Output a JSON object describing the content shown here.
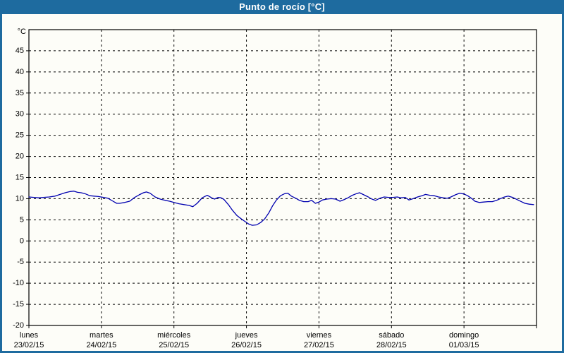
{
  "window": {
    "title": "Punto de rocío [°C]"
  },
  "colors": {
    "frame": "#1e6b9f",
    "titlebar_text": "#ffffff",
    "canvas_bg": "#fdfdf8",
    "axis": "#000000",
    "grid": "#000000",
    "line": "#0000b0"
  },
  "chart_data": {
    "type": "line",
    "title": "Punto de rocío [°C]",
    "ylabel": "°C",
    "ylim": [
      -20,
      50
    ],
    "y_ticks": [
      -20,
      -15,
      -10,
      -5,
      0,
      5,
      10,
      15,
      20,
      25,
      30,
      35,
      40,
      45
    ],
    "xlim_days": [
      0,
      7
    ],
    "grid": "dashed",
    "legend": "none",
    "x_categories": [
      {
        "day": "lunes",
        "date": "23/02/15"
      },
      {
        "day": "martes",
        "date": "24/02/15"
      },
      {
        "day": "miércoles",
        "date": "25/02/15"
      },
      {
        "day": "jueves",
        "date": "26/02/15"
      },
      {
        "day": "viernes",
        "date": "27/02/15"
      },
      {
        "day": "sábado",
        "date": "28/02/15"
      },
      {
        "day": "domingo",
        "date": "01/03/15"
      }
    ],
    "series": [
      {
        "name": "Punto de rocío",
        "unit": "°C",
        "points": [
          [
            0.0,
            10.4
          ],
          [
            0.07,
            10.3
          ],
          [
            0.14,
            10.2
          ],
          [
            0.2,
            10.3
          ],
          [
            0.28,
            10.4
          ],
          [
            0.36,
            10.6
          ],
          [
            0.43,
            11.0
          ],
          [
            0.5,
            11.4
          ],
          [
            0.57,
            11.7
          ],
          [
            0.62,
            11.8
          ],
          [
            0.67,
            11.5
          ],
          [
            0.72,
            11.4
          ],
          [
            0.77,
            11.2
          ],
          [
            0.84,
            10.7
          ],
          [
            0.9,
            10.6
          ],
          [
            0.96,
            10.5
          ],
          [
            1.03,
            10.3
          ],
          [
            1.09,
            10.1
          ],
          [
            1.16,
            9.4
          ],
          [
            1.21,
            8.9
          ],
          [
            1.25,
            8.9
          ],
          [
            1.32,
            9.1
          ],
          [
            1.39,
            9.4
          ],
          [
            1.45,
            10.2
          ],
          [
            1.52,
            10.9
          ],
          [
            1.58,
            11.4
          ],
          [
            1.62,
            11.6
          ],
          [
            1.67,
            11.3
          ],
          [
            1.74,
            10.4
          ],
          [
            1.81,
            9.9
          ],
          [
            1.88,
            9.6
          ],
          [
            1.94,
            9.4
          ],
          [
            2.0,
            9.1
          ],
          [
            2.07,
            8.8
          ],
          [
            2.14,
            8.6
          ],
          [
            2.21,
            8.4
          ],
          [
            2.26,
            8.1
          ],
          [
            2.32,
            8.9
          ],
          [
            2.39,
            10.2
          ],
          [
            2.46,
            10.8
          ],
          [
            2.52,
            10.2
          ],
          [
            2.56,
            9.9
          ],
          [
            2.61,
            10.3
          ],
          [
            2.65,
            10.2
          ],
          [
            2.69,
            9.8
          ],
          [
            2.75,
            8.6
          ],
          [
            2.81,
            7.2
          ],
          [
            2.87,
            6.0
          ],
          [
            2.93,
            5.2
          ],
          [
            2.99,
            4.5
          ],
          [
            3.03,
            4.0
          ],
          [
            3.08,
            3.7
          ],
          [
            3.14,
            3.8
          ],
          [
            3.2,
            4.4
          ],
          [
            3.25,
            5.2
          ],
          [
            3.31,
            6.7
          ],
          [
            3.36,
            8.3
          ],
          [
            3.41,
            9.6
          ],
          [
            3.47,
            10.7
          ],
          [
            3.53,
            11.2
          ],
          [
            3.57,
            11.3
          ],
          [
            3.62,
            10.6
          ],
          [
            3.68,
            10.1
          ],
          [
            3.73,
            9.6
          ],
          [
            3.79,
            9.3
          ],
          [
            3.85,
            9.3
          ],
          [
            3.9,
            9.6
          ],
          [
            3.95,
            8.9
          ],
          [
            4.0,
            9.2
          ],
          [
            4.05,
            9.7
          ],
          [
            4.11,
            9.9
          ],
          [
            4.17,
            10.0
          ],
          [
            4.23,
            9.9
          ],
          [
            4.29,
            9.4
          ],
          [
            4.35,
            9.8
          ],
          [
            4.4,
            10.2
          ],
          [
            4.46,
            10.8
          ],
          [
            4.52,
            11.2
          ],
          [
            4.56,
            11.4
          ],
          [
            4.62,
            10.9
          ],
          [
            4.68,
            10.4
          ],
          [
            4.73,
            9.9
          ],
          [
            4.78,
            9.6
          ],
          [
            4.84,
            10.1
          ],
          [
            4.9,
            10.4
          ],
          [
            4.96,
            10.3
          ],
          [
            5.02,
            10.3
          ],
          [
            5.08,
            10.4
          ],
          [
            5.13,
            10.2
          ],
          [
            5.19,
            10.3
          ],
          [
            5.24,
            9.7
          ],
          [
            5.3,
            10.0
          ],
          [
            5.36,
            10.4
          ],
          [
            5.42,
            10.7
          ],
          [
            5.47,
            11.0
          ],
          [
            5.53,
            10.8
          ],
          [
            5.59,
            10.7
          ],
          [
            5.65,
            10.4
          ],
          [
            5.71,
            10.2
          ],
          [
            5.77,
            10.1
          ],
          [
            5.82,
            10.4
          ],
          [
            5.88,
            10.9
          ],
          [
            5.94,
            11.3
          ],
          [
            6.0,
            11.1
          ],
          [
            6.05,
            10.7
          ],
          [
            6.11,
            10.0
          ],
          [
            6.15,
            9.4
          ],
          [
            6.21,
            9.1
          ],
          [
            6.27,
            9.2
          ],
          [
            6.33,
            9.3
          ],
          [
            6.39,
            9.3
          ],
          [
            6.45,
            9.6
          ],
          [
            6.5,
            10.0
          ],
          [
            6.56,
            10.4
          ],
          [
            6.61,
            10.6
          ],
          [
            6.67,
            10.3
          ],
          [
            6.73,
            9.8
          ],
          [
            6.79,
            9.3
          ],
          [
            6.84,
            8.9
          ],
          [
            6.9,
            8.7
          ],
          [
            6.96,
            8.6
          ]
        ]
      }
    ]
  }
}
